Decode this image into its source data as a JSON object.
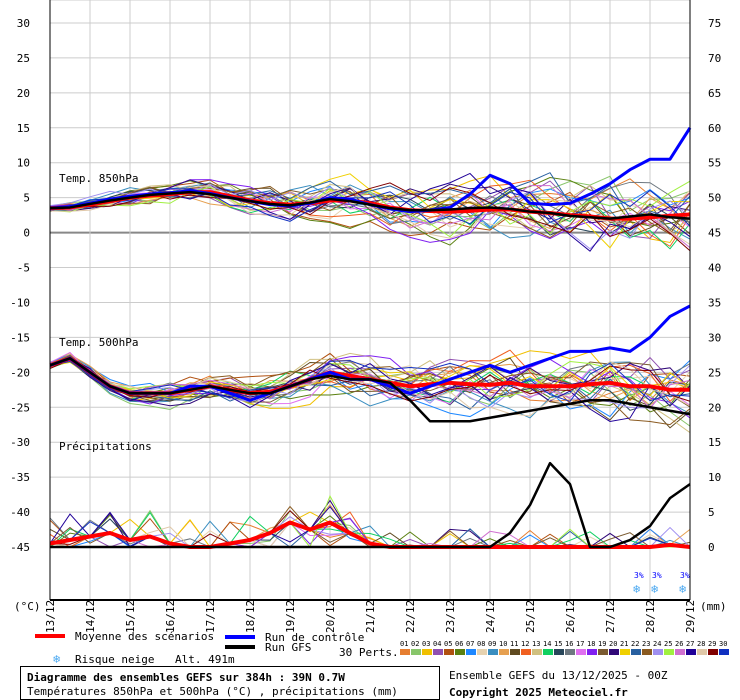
{
  "chart_data": {
    "type": "line",
    "title": "Diagramme des ensembles GEFS sur 384h : 39N 0.7W",
    "subtitle": "Températures 850hPa et 500hPa (°C) , précipitations (mm)",
    "run": "Ensemble GEFS du 13/12/2025 - 00Z",
    "copyright": "Copyright 2025 Meteociel.fr",
    "altitude": "Alt. 491m",
    "ylabel_left": "(°C)",
    "ylabel_right": "(mm)",
    "ylim_left": [
      -45,
      30
    ],
    "ylim_right": [
      0,
      75
    ],
    "yticks_left": [
      30,
      25,
      20,
      15,
      10,
      5,
      0,
      -5,
      -10,
      -15,
      -20,
      -25,
      -30,
      -35,
      -40,
      -45
    ],
    "yticks_right": [
      75,
      70,
      65,
      60,
      55,
      50,
      45,
      40,
      35,
      30,
      25,
      20,
      15,
      10,
      5,
      0
    ],
    "xticks": [
      "13/12",
      "14/12",
      "15/12",
      "16/12",
      "17/12",
      "18/12",
      "19/12",
      "20/12",
      "21/12",
      "22/12",
      "23/12",
      "24/12",
      "25/12",
      "26/12",
      "27/12",
      "28/12",
      "29/12"
    ],
    "grid": true,
    "panel_labels": [
      "Temp. 850hPa",
      "Temp. 500hPa",
      "Précipitations"
    ],
    "x_hours_step": 12,
    "series": [
      {
        "name": "Moyenne des scénarios",
        "panel": "850",
        "color": "#ff0000",
        "values": [
          3.5,
          3.6,
          4,
          4.5,
          5,
          5.3,
          5.5,
          5.8,
          5.8,
          5.2,
          4.6,
          4.2,
          4,
          4.2,
          4.6,
          4.6,
          4.2,
          3.6,
          3.2,
          3.1,
          3,
          3.1,
          3.3,
          3.3,
          3,
          2.8,
          2.5,
          2.3,
          2,
          2,
          2.2,
          2.4,
          2.6
        ]
      },
      {
        "name": "Run de contrôle",
        "panel": "850",
        "color": "#0000ff",
        "values": [
          3.5,
          3.7,
          4.2,
          4.8,
          5.2,
          5.5,
          5.7,
          6,
          5.6,
          5,
          4.5,
          4,
          3.8,
          4.2,
          5,
          4.8,
          4,
          3.4,
          3,
          3.2,
          3.6,
          5.5,
          8.2,
          7,
          4.2,
          4,
          4.2,
          5.5,
          7,
          9,
          10.5,
          10.5,
          15
        ]
      },
      {
        "name": "Run GFS",
        "panel": "850",
        "color": "#000000",
        "values": [
          3.5,
          3.6,
          4.1,
          4.6,
          5,
          5.4,
          5.6,
          5.8,
          5.5,
          5,
          4.5,
          4.1,
          3.9,
          4.3,
          4.8,
          4.5,
          4,
          3.5,
          3.2,
          3.2,
          3.3,
          3.5,
          3.6,
          3.4,
          3,
          2.8,
          2.4,
          2.2,
          2,
          2.3,
          2.6,
          2.2,
          2
        ]
      },
      {
        "name": "Moyenne des scénarios",
        "panel": "500",
        "color": "#ff0000",
        "values": [
          -19,
          -18,
          -20,
          -22,
          -23,
          -23,
          -23,
          -22.5,
          -22,
          -22.5,
          -23,
          -22.8,
          -22,
          -21,
          -20,
          -20.5,
          -21,
          -21.5,
          -22,
          -21.7,
          -21.5,
          -21.7,
          -21.8,
          -21.5,
          -22,
          -22,
          -22,
          -21.7,
          -21.5,
          -22,
          -22,
          -22.5,
          -22.5
        ]
      },
      {
        "name": "Run de contrôle",
        "panel": "500",
        "color": "#0000ff",
        "values": [
          -19,
          -18,
          -20,
          -22,
          -23,
          -23,
          -23,
          -22,
          -22,
          -23,
          -24,
          -23,
          -22,
          -21,
          -20,
          -21,
          -21,
          -22,
          -23,
          -22,
          -21,
          -20,
          -19,
          -20,
          -19,
          -18,
          -17,
          -17,
          -16.5,
          -17,
          -15,
          -12,
          -10.5
        ]
      },
      {
        "name": "Run GFS",
        "panel": "500",
        "color": "#000000",
        "values": [
          -19,
          -18,
          -20,
          -22,
          -23,
          -23,
          -23,
          -22.5,
          -22,
          -22.5,
          -23,
          -23,
          -22,
          -21,
          -20.5,
          -21,
          -21,
          -21.5,
          -24,
          -27,
          -27,
          -27,
          -26.5,
          -26,
          -25.5,
          -25,
          -24.5,
          -24,
          -24,
          -24.5,
          -25,
          -25.5,
          -26
        ]
      },
      {
        "name": "Moyenne des scénarios",
        "panel": "precip",
        "color": "#ff0000",
        "values": [
          0.5,
          1,
          1.5,
          2,
          1,
          1.5,
          0.5,
          0,
          0,
          0.5,
          1,
          2,
          3.5,
          2.5,
          3.5,
          2,
          0.5,
          0,
          0,
          0,
          0,
          0,
          0,
          0,
          0,
          0,
          0,
          0,
          0,
          0,
          0,
          0.3,
          0
        ]
      },
      {
        "name": "Run GFS",
        "panel": "precip",
        "color": "#000000",
        "values": [
          0,
          0,
          0,
          0,
          0,
          0,
          0,
          0,
          0,
          0,
          0,
          0,
          0,
          0,
          0,
          0,
          0,
          0,
          0,
          0,
          0,
          0,
          0,
          2,
          6,
          12,
          9,
          0,
          0,
          1,
          3,
          7,
          9
        ]
      }
    ],
    "snow_risk": [
      {
        "date": "27/12",
        "pct": "3%"
      },
      {
        "date": "28/12",
        "pct": "3%"
      },
      {
        "date": "28/12",
        "pct": "3%"
      }
    ],
    "perturbations_label": "30 Perts.",
    "perturbations": [
      {
        "id": "01",
        "color": "#e67e30"
      },
      {
        "id": "02",
        "color": "#88c66a"
      },
      {
        "id": "03",
        "color": "#f0c000"
      },
      {
        "id": "04",
        "color": "#9050b0"
      },
      {
        "id": "05",
        "color": "#b05010"
      },
      {
        "id": "06",
        "color": "#5a8010"
      },
      {
        "id": "07",
        "color": "#1e88ff"
      },
      {
        "id": "08",
        "color": "#e6d2b0"
      },
      {
        "id": "09",
        "color": "#3a8ec0"
      },
      {
        "id": "10",
        "color": "#e6a050"
      },
      {
        "id": "11",
        "color": "#604a20"
      },
      {
        "id": "12",
        "color": "#f06020"
      },
      {
        "id": "13",
        "color": "#d0c080"
      },
      {
        "id": "14",
        "color": "#10d060"
      },
      {
        "id": "15",
        "color": "#28465a"
      },
      {
        "id": "16",
        "color": "#6e7880"
      },
      {
        "id": "17",
        "color": "#e070f0"
      },
      {
        "id": "18",
        "color": "#8020f0"
      },
      {
        "id": "19",
        "color": "#7a5a30"
      },
      {
        "id": "20",
        "color": "#300878"
      },
      {
        "id": "21",
        "color": "#f0d000"
      },
      {
        "id": "22",
        "color": "#2860a0"
      },
      {
        "id": "23",
        "color": "#8a5a20"
      },
      {
        "id": "24",
        "color": "#a090f0"
      },
      {
        "id": "25",
        "color": "#a0f040"
      },
      {
        "id": "26",
        "color": "#d070d0"
      },
      {
        "id": "27",
        "color": "#200098"
      },
      {
        "id": "28",
        "color": "#e0c8a8"
      },
      {
        "id": "29",
        "color": "#800000"
      },
      {
        "id": "30",
        "color": "#1030c0"
      }
    ]
  },
  "legend": {
    "mean": "Moyenne des scénarios",
    "control": "Run de contrôle",
    "gfs": "Run GFS",
    "snow": "Risque neige"
  }
}
